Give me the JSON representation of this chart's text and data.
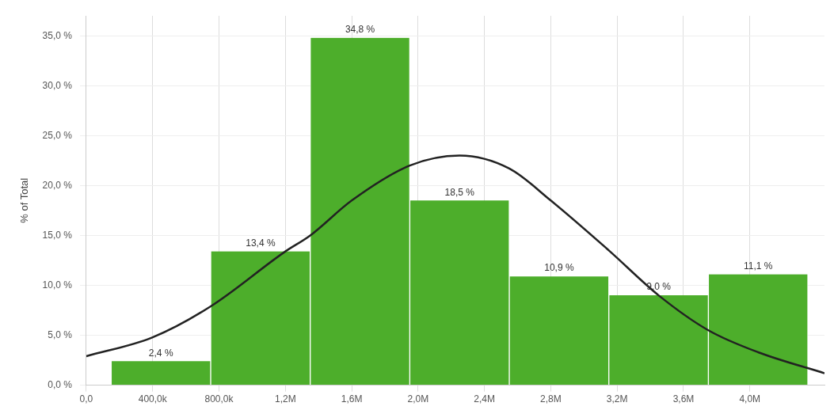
{
  "chart_data": {
    "type": "histogram",
    "ylabel": "% of Total",
    "bins": [
      150000,
      750000,
      1350000,
      1950000,
      2550000,
      3150000,
      3750000,
      4350000
    ],
    "series": [
      {
        "type": "histogram",
        "color": "#4dae2b",
        "values": [
          2.4,
          13.4,
          34.8,
          18.5,
          10.9,
          9.0,
          11.1
        ],
        "value_labels": [
          "2,4 %",
          "13,4 %",
          "34,8 %",
          "18,5 %",
          "10,9 %",
          "9,0 %",
          "11,1 %"
        ]
      },
      {
        "type": "line",
        "color": "#222222",
        "x": [
          0,
          400000,
          750000,
          1200000,
          1350000,
          1600000,
          1950000,
          2250000,
          2550000,
          2800000,
          3150000,
          3450000,
          3750000,
          4050000,
          4450000
        ],
        "values": [
          2.9,
          4.8,
          7.9,
          13.4,
          15,
          18.5,
          22,
          23,
          21.7,
          18.5,
          13.5,
          9.0,
          5.5,
          3.3,
          1.2
        ]
      }
    ],
    "xlim": [
      0,
      4450000
    ],
    "xticks": [
      {
        "value": 0,
        "label": "0,0"
      },
      {
        "value": 400000,
        "label": "400,0k"
      },
      {
        "value": 800000,
        "label": "800,0k"
      },
      {
        "value": 1200000,
        "label": "1,2M"
      },
      {
        "value": 1600000,
        "label": "1,6M"
      },
      {
        "value": 2000000,
        "label": "2,0M"
      },
      {
        "value": 2400000,
        "label": "2,4M"
      },
      {
        "value": 2800000,
        "label": "2,8M"
      },
      {
        "value": 3200000,
        "label": "3,2M"
      },
      {
        "value": 3600000,
        "label": "3,6M"
      },
      {
        "value": 4000000,
        "label": "4,0M"
      }
    ],
    "ylim": [
      0,
      37
    ],
    "yticks": [
      {
        "value": 0,
        "label": "0,0 %"
      },
      {
        "value": 5,
        "label": "5,0 %"
      },
      {
        "value": 10,
        "label": "10,0 %"
      },
      {
        "value": 15,
        "label": "15,0 %"
      },
      {
        "value": 20,
        "label": "20,0 %"
      },
      {
        "value": 25,
        "label": "25,0 %"
      },
      {
        "value": 30,
        "label": "30,0 %"
      },
      {
        "value": 35,
        "label": "35,0 %"
      }
    ],
    "grid": true,
    "marker": "none",
    "line_style": "solid"
  }
}
